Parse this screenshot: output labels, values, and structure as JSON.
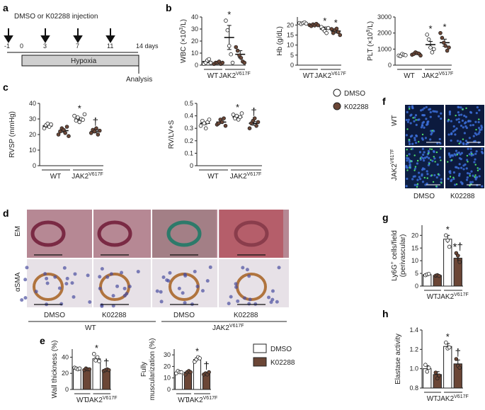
{
  "panels": {
    "a": "a",
    "b": "b",
    "c": "c",
    "d": "d",
    "e": "e",
    "f": "f",
    "g": "g",
    "h": "h"
  },
  "colors": {
    "dmso": "#ffffff",
    "k02288": "#6b4636",
    "stroke": "#222222",
    "hypoxia": "#cfcfcf",
    "em_tissue": "#8a3d4c",
    "ihc_bg": "#e8e0e4"
  },
  "groups": {
    "wt": "WT",
    "jak2": "JAK2",
    "jak2_sup": "V617F"
  },
  "treatments": {
    "dmso": "DMSO",
    "k02288": "K02288"
  },
  "timeline": {
    "injection_label": "DMSO or K02288 injection",
    "days": [
      "-1",
      "0",
      "3",
      "7",
      "11",
      "14 days"
    ],
    "hypoxia_label": "Hypoxia",
    "analysis_label": "Analysis"
  },
  "markers": {
    "star": "*",
    "dagger": "†"
  },
  "micrographs": {
    "f_rows": [
      "WT",
      "JAK2"
    ],
    "d_rows": [
      "EM",
      "αSMA"
    ]
  },
  "chart_data": [
    {
      "panel": "b",
      "type": "scatter",
      "ylabel_main": "WBC (×10",
      "ylabel_sup": "3",
      "ylabel_end": "/L)",
      "yticks": [
        "0",
        "10",
        "20",
        "30",
        "40"
      ],
      "ylim": [
        0,
        40
      ],
      "means": [
        3,
        2,
        23,
        9
      ],
      "sem": [
        1,
        0.5,
        10,
        3
      ],
      "points": [
        [
          1,
          2,
          4,
          5,
          2
        ],
        [
          1,
          2,
          2,
          3,
          1,
          2
        ],
        [
          37,
          29,
          16,
          9,
          2
        ],
        [
          15,
          12,
          8,
          6,
          3,
          2
        ]
      ],
      "marks": [
        "",
        "",
        "*",
        ""
      ]
    },
    {
      "panel": "b",
      "type": "scatter",
      "ylabel_main": "Hb (g/dL)",
      "yticks": [
        "0",
        "5",
        "10",
        "15",
        "20"
      ],
      "ylim": [
        0,
        24
      ],
      "means": [
        21,
        20,
        18,
        17
      ],
      "sem": [
        0.3,
        0.4,
        1,
        1
      ],
      "points": [
        [
          21,
          20.5,
          21,
          21.3,
          20.7
        ],
        [
          20,
          19.5,
          20.3,
          19.8,
          20.6,
          19.9
        ],
        [
          19,
          18,
          17,
          16,
          18.5
        ],
        [
          18,
          16,
          17.5,
          18.2,
          16.5,
          15
        ]
      ],
      "marks": [
        "",
        "",
        "*",
        "*"
      ]
    },
    {
      "panel": "b",
      "type": "scatter",
      "ylabel_main": "PLT (×10",
      "ylabel_sup": "9",
      "ylabel_end": "/L)",
      "yticks": [
        "0",
        "1000",
        "2000",
        "3000"
      ],
      "ylim": [
        0,
        3000
      ],
      "means": [
        630,
        720,
        1280,
        1400
      ],
      "sem": [
        40,
        60,
        200,
        220
      ],
      "points": [
        [
          600,
          560,
          700,
          650,
          620
        ],
        [
          650,
          700,
          800,
          750,
          720,
          600
        ],
        [
          1900,
          1600,
          1100,
          800,
          1000
        ],
        [
          2000,
          1700,
          1400,
          1200,
          900,
          1100
        ]
      ],
      "marks": [
        "",
        "",
        "*",
        "*"
      ]
    },
    {
      "panel": "c",
      "type": "scatter",
      "ylabel_main": "RVSP (mmHg)",
      "yticks": [
        "0",
        "10",
        "20",
        "30",
        "40"
      ],
      "ylim": [
        0,
        40
      ],
      "means": [
        25.5,
        22.5,
        30,
        22
      ],
      "sem": [
        0.8,
        1,
        0.8,
        0.9
      ],
      "points": [
        [
          24,
          26,
          27,
          25,
          26.5
        ],
        [
          20,
          22,
          24,
          23,
          21,
          25,
          19
        ],
        [
          32,
          29,
          31,
          28,
          30,
          29.5,
          33
        ],
        [
          21,
          23,
          22,
          24,
          20,
          22.5
        ]
      ],
      "marks": [
        "",
        "",
        "*",
        "†"
      ]
    },
    {
      "panel": "c",
      "type": "scatter",
      "ylabel_main": "RV/LV+S",
      "yticks": [
        "0",
        "0.1",
        "0.2",
        "0.3",
        "0.4",
        "0.5"
      ],
      "ylim": [
        0,
        0.5
      ],
      "means": [
        0.34,
        0.35,
        0.39,
        0.34
      ],
      "sem": [
        0.01,
        0.01,
        0.01,
        0.015
      ],
      "points": [
        [
          0.32,
          0.36,
          0.34,
          0.3,
          0.35,
          0.37
        ],
        [
          0.33,
          0.34,
          0.37,
          0.35,
          0.38,
          0.32
        ],
        [
          0.41,
          0.38,
          0.4,
          0.37,
          0.39,
          0.42
        ],
        [
          0.3,
          0.34,
          0.36,
          0.38,
          0.32,
          0.35
        ]
      ],
      "marks": [
        "",
        "",
        "*",
        "†"
      ]
    },
    {
      "panel": "e",
      "type": "bar",
      "ylabel_main": "Wall thickness (%)",
      "yticks": [
        "0",
        "20",
        "40"
      ],
      "ylim": [
        0,
        50
      ],
      "means": [
        26,
        25,
        38,
        24
      ],
      "sem": [
        1,
        1,
        2,
        1
      ],
      "points": [
        [
          27,
          26,
          25,
          26
        ],
        [
          24,
          26,
          25,
          25
        ],
        [
          44,
          36,
          40,
          35
        ],
        [
          23,
          24,
          25,
          24
        ]
      ],
      "marks": [
        "",
        "",
        "*",
        "†"
      ]
    },
    {
      "panel": "e",
      "type": "bar",
      "ylabel_main": "Fully",
      "ylabel_line2": "muscularization (%)",
      "yticks": [
        "0",
        "10",
        "20",
        "30"
      ],
      "ylim": [
        0,
        35
      ],
      "means": [
        15,
        15,
        26,
        14
      ],
      "sem": [
        1,
        1,
        1.5,
        0.8
      ],
      "points": [
        [
          14,
          16,
          15,
          15
        ],
        [
          13,
          15,
          16,
          15
        ],
        [
          24,
          26,
          28,
          27
        ],
        [
          13,
          14,
          13,
          15
        ]
      ],
      "marks": [
        "",
        "",
        "*",
        "†"
      ]
    },
    {
      "panel": "g",
      "type": "bar",
      "ylabel_main": "Ly6G",
      "ylabel_sup": "+",
      "ylabel_end": " cells/field",
      "ylabel_line2": "(perivascular)",
      "yticks": [
        "0",
        "5",
        "10",
        "15",
        "20"
      ],
      "ylim": [
        0,
        24
      ],
      "means": [
        4.5,
        4.2,
        18.5,
        11
      ],
      "sem": [
        0.3,
        0.2,
        1.5,
        1.2
      ],
      "points": [
        [
          4.3,
          4.6,
          4.8
        ],
        [
          4.1,
          4.3,
          4.0
        ],
        [
          20,
          18,
          15.5
        ],
        [
          13,
          12,
          9.5
        ]
      ],
      "marks": [
        "",
        "",
        "*",
        "*†"
      ]
    },
    {
      "panel": "h",
      "type": "bar",
      "ylabel_main": "Elastase activity",
      "yticks": [
        "0.8",
        "1.0",
        "1.2",
        "1.4"
      ],
      "ylim": [
        0.8,
        1.4
      ],
      "means": [
        1.0,
        0.94,
        1.23,
        1.05
      ],
      "sem": [
        0.03,
        0.03,
        0.03,
        0.04
      ],
      "points": [
        [
          1.04,
          0.97,
          1.01
        ],
        [
          0.96,
          0.9,
          0.93
        ],
        [
          1.27,
          1.21,
          1.22
        ],
        [
          1.1,
          1.03,
          1.01
        ]
      ],
      "marks": [
        "",
        "",
        "*",
        "†"
      ]
    }
  ]
}
